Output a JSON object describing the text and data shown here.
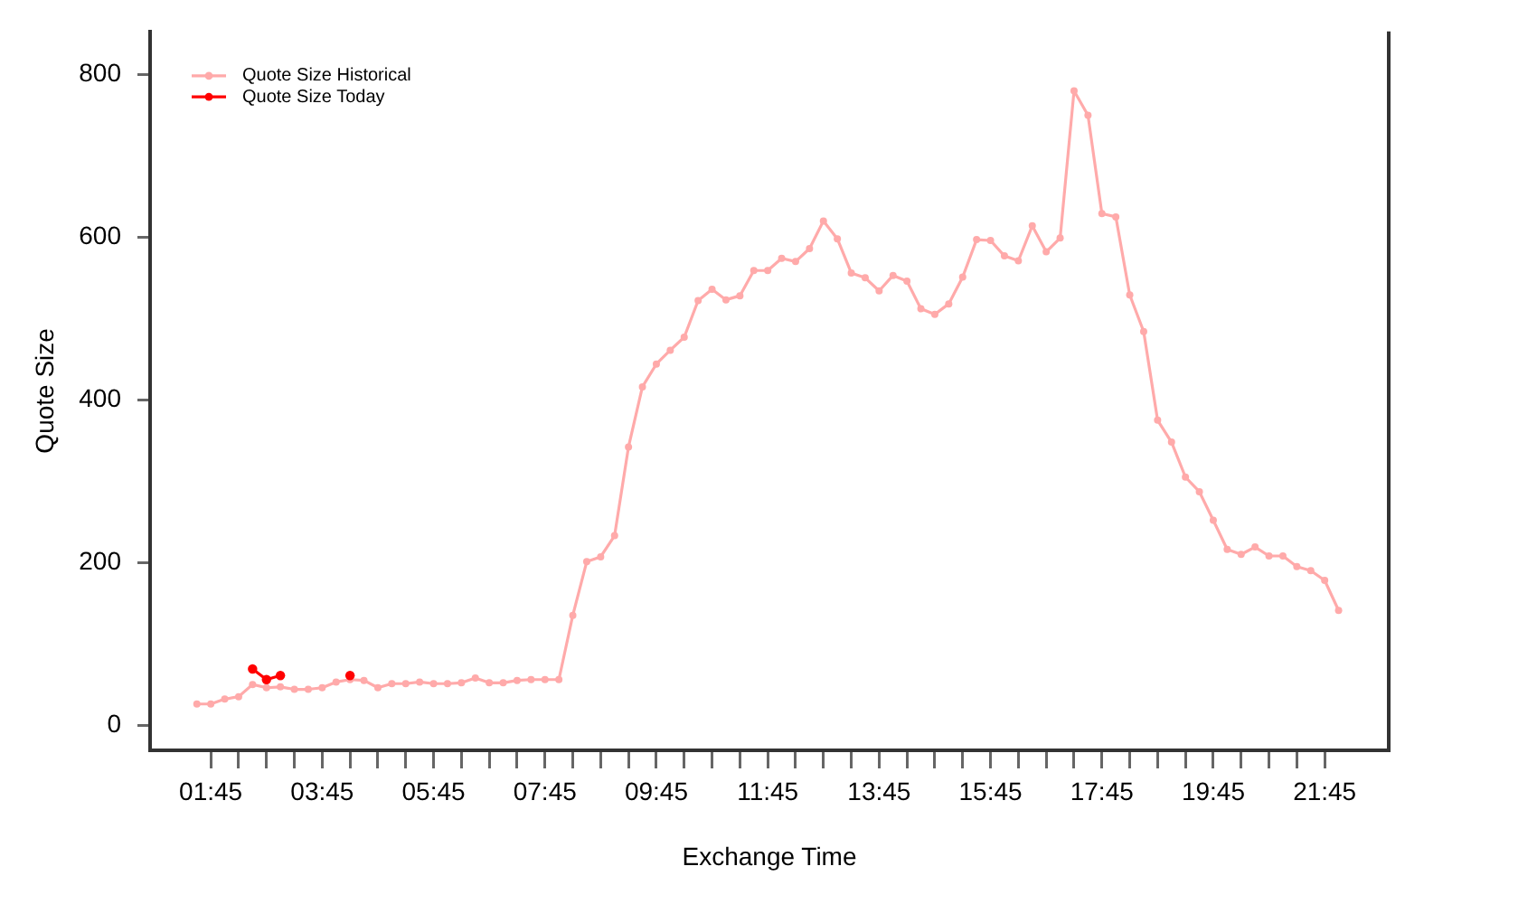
{
  "chart_data": {
    "type": "line",
    "xlabel": "Exchange Time",
    "ylabel": "Quote Size",
    "legend": "top left",
    "marker": "circle",
    "line_style": "solid",
    "xlim": [
      0.66,
      22.9
    ],
    "ylim": [
      -31,
      853
    ],
    "xticks": [
      {
        "value": 1.75,
        "label": "01:45"
      },
      {
        "value": 2.25,
        "label": null
      },
      {
        "value": 2.75,
        "label": null
      },
      {
        "value": 3.25,
        "label": null
      },
      {
        "value": 3.75,
        "label": "03:45"
      },
      {
        "value": 4.25,
        "label": null
      },
      {
        "value": 4.75,
        "label": null
      },
      {
        "value": 5.25,
        "label": null
      },
      {
        "value": 5.75,
        "label": "05:45"
      },
      {
        "value": 6.25,
        "label": null
      },
      {
        "value": 6.75,
        "label": null
      },
      {
        "value": 7.25,
        "label": null
      },
      {
        "value": 7.75,
        "label": "07:45"
      },
      {
        "value": 8.25,
        "label": null
      },
      {
        "value": 8.75,
        "label": null
      },
      {
        "value": 9.25,
        "label": null
      },
      {
        "value": 9.75,
        "label": "09:45"
      },
      {
        "value": 10.25,
        "label": null
      },
      {
        "value": 10.75,
        "label": null
      },
      {
        "value": 11.25,
        "label": null
      },
      {
        "value": 11.75,
        "label": "11:45"
      },
      {
        "value": 12.25,
        "label": null
      },
      {
        "value": 12.75,
        "label": null
      },
      {
        "value": 13.25,
        "label": null
      },
      {
        "value": 13.75,
        "label": "13:45"
      },
      {
        "value": 14.25,
        "label": null
      },
      {
        "value": 14.75,
        "label": null
      },
      {
        "value": 15.25,
        "label": null
      },
      {
        "value": 15.75,
        "label": "15:45"
      },
      {
        "value": 16.25,
        "label": null
      },
      {
        "value": 16.75,
        "label": null
      },
      {
        "value": 17.25,
        "label": null
      },
      {
        "value": 17.75,
        "label": "17:45"
      },
      {
        "value": 18.25,
        "label": null
      },
      {
        "value": 18.75,
        "label": null
      },
      {
        "value": 19.25,
        "label": null
      },
      {
        "value": 19.75,
        "label": "19:45"
      },
      {
        "value": 20.25,
        "label": null
      },
      {
        "value": 20.75,
        "label": null
      },
      {
        "value": 21.25,
        "label": null
      },
      {
        "value": 21.75,
        "label": "21:45"
      }
    ],
    "yticks": [
      0,
      200,
      400,
      600,
      800
    ],
    "series": [
      {
        "name": "Quote Size Historical",
        "color": "#ffaaaa",
        "x": [
          1.5,
          1.75,
          2,
          2.25,
          2.5,
          2.75,
          3,
          3.25,
          3.5,
          3.75,
          4,
          4.25,
          4.5,
          4.75,
          5,
          5.25,
          5.5,
          5.75,
          6,
          6.25,
          6.5,
          6.75,
          7,
          7.25,
          7.5,
          7.75,
          8,
          8.25,
          8.5,
          8.75,
          9,
          9.25,
          9.5,
          9.75,
          10,
          10.25,
          10.5,
          10.75,
          11,
          11.25,
          11.5,
          11.75,
          12,
          12.25,
          12.5,
          12.75,
          13,
          13.25,
          13.5,
          13.75,
          14,
          14.25,
          14.5,
          14.75,
          15,
          15.25,
          15.5,
          15.75,
          16,
          16.25,
          16.5,
          16.75,
          17,
          17.25,
          17.5,
          17.75,
          18,
          18.25,
          18.5,
          18.75,
          19,
          19.25,
          19.5,
          19.75,
          20,
          20.25,
          20.5,
          20.75,
          21,
          21.25,
          21.5,
          21.75,
          22
        ],
        "values": [
          26,
          26,
          32,
          35,
          50,
          46,
          47,
          44,
          44,
          46,
          53,
          56,
          55,
          46,
          51,
          51,
          53,
          51,
          51,
          52,
          58,
          52,
          52,
          55,
          56,
          56,
          56,
          135,
          201,
          207,
          233,
          342,
          416,
          444,
          461,
          477,
          522,
          536,
          523,
          528,
          559,
          559,
          574,
          570,
          586,
          620,
          598,
          556,
          550,
          534,
          553,
          546,
          512,
          505,
          518,
          551,
          597,
          596,
          577,
          571,
          614,
          582,
          599,
          780,
          750,
          629,
          625,
          529,
          484,
          375,
          348,
          305,
          287,
          252,
          216,
          210,
          219,
          208,
          208,
          195,
          190,
          178,
          141
        ]
      },
      {
        "name": "Quote Size Today",
        "color": "#ff0000",
        "x": [
          2.5,
          2.75,
          3,
          3.25,
          3.5,
          3.75,
          4,
          4.25
        ],
        "values": [
          69,
          56,
          61,
          null,
          null,
          null,
          null,
          61
        ]
      }
    ]
  }
}
